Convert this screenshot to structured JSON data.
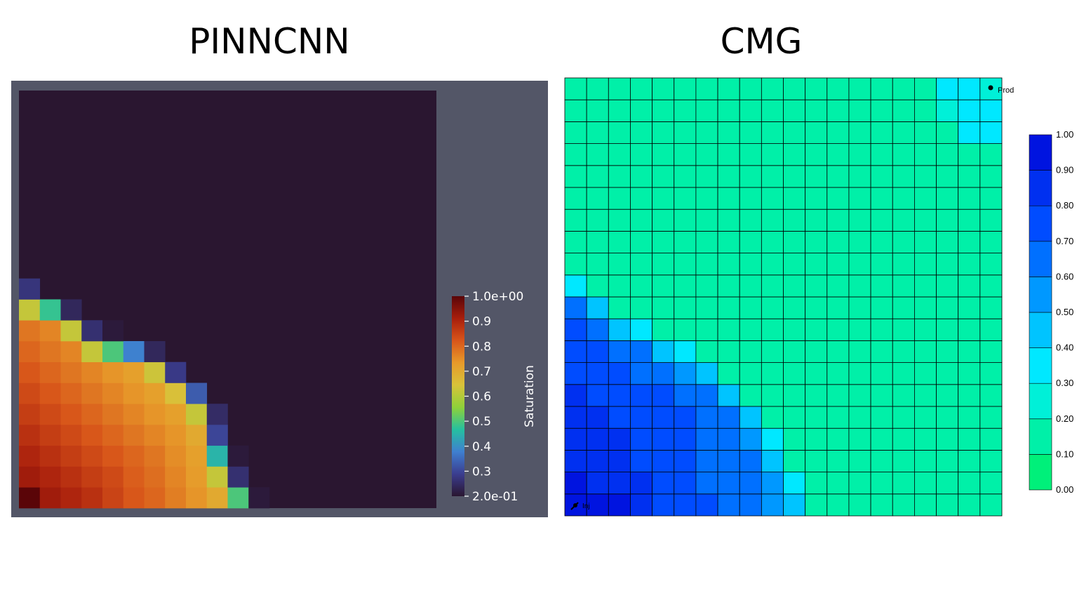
{
  "titles": {
    "left": "PINNCNN",
    "right": "CMG"
  },
  "colors": {
    "pinn_background": "#535667",
    "pinn_cmap": [
      "#2a1630",
      "#3b3d8f",
      "#3f7fd0",
      "#25c0a0",
      "#8ed13a",
      "#d8c23a",
      "#e79a2a",
      "#d8551a",
      "#a81e0c",
      "#5a0508"
    ],
    "cmg_cmap": [
      "#00f07a",
      "#00f0a8",
      "#00f0d8",
      "#00e8ff",
      "#00c4ff",
      "#0098ff",
      "#0070ff",
      "#004cff",
      "#0030f0",
      "#0014e0"
    ]
  },
  "chart_data": [
    {
      "type": "heatmap",
      "title": "PINNCNN",
      "colorbar_label": "Saturation",
      "colorbar_range": [
        0.2,
        1.0
      ],
      "colorbar_ticks": [
        "1.0e+00",
        "0.9",
        "0.8",
        "0.7",
        "0.6",
        "0.5",
        "0.4",
        "0.3",
        "2.0e-01"
      ],
      "grid_size": [
        20,
        20
      ],
      "origin": "bottom-left",
      "note_rows": "rows listed from bottom (row 0) upward; values for columns 0.. across; remaining cells = 0.2",
      "rows": [
        [
          1.0,
          0.92,
          0.9,
          0.88,
          0.85,
          0.82,
          0.8,
          0.77,
          0.74,
          0.7,
          0.5,
          0.21
        ],
        [
          0.92,
          0.9,
          0.88,
          0.86,
          0.84,
          0.81,
          0.79,
          0.76,
          0.73,
          0.62,
          0.26
        ],
        [
          0.9,
          0.88,
          0.86,
          0.84,
          0.82,
          0.8,
          0.78,
          0.75,
          0.72,
          0.45,
          0.21
        ],
        [
          0.88,
          0.86,
          0.84,
          0.82,
          0.8,
          0.78,
          0.76,
          0.74,
          0.7,
          0.3
        ],
        [
          0.86,
          0.84,
          0.82,
          0.8,
          0.78,
          0.76,
          0.74,
          0.72,
          0.62,
          0.25
        ],
        [
          0.84,
          0.82,
          0.8,
          0.78,
          0.76,
          0.74,
          0.72,
          0.65,
          0.33
        ],
        [
          0.82,
          0.8,
          0.78,
          0.76,
          0.74,
          0.72,
          0.63,
          0.28
        ],
        [
          0.8,
          0.78,
          0.76,
          0.62,
          0.5,
          0.38,
          0.24
        ],
        [
          0.78,
          0.76,
          0.62,
          0.26,
          0.21
        ],
        [
          0.62,
          0.48,
          0.24
        ],
        [
          0.27
        ]
      ]
    },
    {
      "type": "heatmap",
      "title": "CMG",
      "colorbar_range": [
        0.0,
        1.0
      ],
      "colorbar_ticks": [
        "1.00",
        "0.90",
        "0.80",
        "0.70",
        "0.60",
        "0.50",
        "0.40",
        "0.30",
        "0.20",
        "0.10",
        "0.00"
      ],
      "grid_size": [
        20,
        20
      ],
      "origin": "bottom-left",
      "note_rows": "rows listed from bottom (row 0) upward; remaining cells = 0.12",
      "rows": [
        [
          0.93,
          0.92,
          0.9,
          0.85,
          0.75,
          0.72,
          0.7,
          0.68,
          0.65,
          0.55,
          0.4
        ],
        [
          0.9,
          0.88,
          0.86,
          0.8,
          0.76,
          0.72,
          0.68,
          0.66,
          0.6,
          0.52,
          0.3
        ],
        [
          0.88,
          0.86,
          0.82,
          0.78,
          0.75,
          0.72,
          0.68,
          0.64,
          0.6,
          0.42
        ],
        [
          0.85,
          0.82,
          0.8,
          0.78,
          0.74,
          0.7,
          0.68,
          0.62,
          0.52,
          0.3
        ],
        [
          0.82,
          0.8,
          0.78,
          0.76,
          0.72,
          0.7,
          0.66,
          0.62,
          0.45
        ],
        [
          0.8,
          0.78,
          0.76,
          0.72,
          0.7,
          0.66,
          0.62,
          0.44
        ],
        [
          0.78,
          0.76,
          0.72,
          0.68,
          0.62,
          0.55,
          0.42
        ],
        [
          0.74,
          0.72,
          0.68,
          0.6,
          0.45,
          0.38
        ],
        [
          0.72,
          0.68,
          0.48,
          0.35
        ],
        [
          0.6,
          0.45
        ],
        [
          0.3
        ]
      ],
      "top_right_cells": [
        {
          "row": 19,
          "col": 17,
          "value": 0.3
        },
        {
          "row": 19,
          "col": 18,
          "value": 0.3
        },
        {
          "row": 19,
          "col": 19,
          "value": 0.25
        },
        {
          "row": 18,
          "col": 17,
          "value": 0.28
        },
        {
          "row": 18,
          "col": 18,
          "value": 0.3
        },
        {
          "row": 18,
          "col": 19,
          "value": 0.3
        },
        {
          "row": 17,
          "col": 18,
          "value": 0.3
        },
        {
          "row": 17,
          "col": 19,
          "value": 0.3
        }
      ],
      "wells": [
        {
          "label": "Prod"
        },
        {
          "label": "Inj"
        }
      ]
    }
  ]
}
